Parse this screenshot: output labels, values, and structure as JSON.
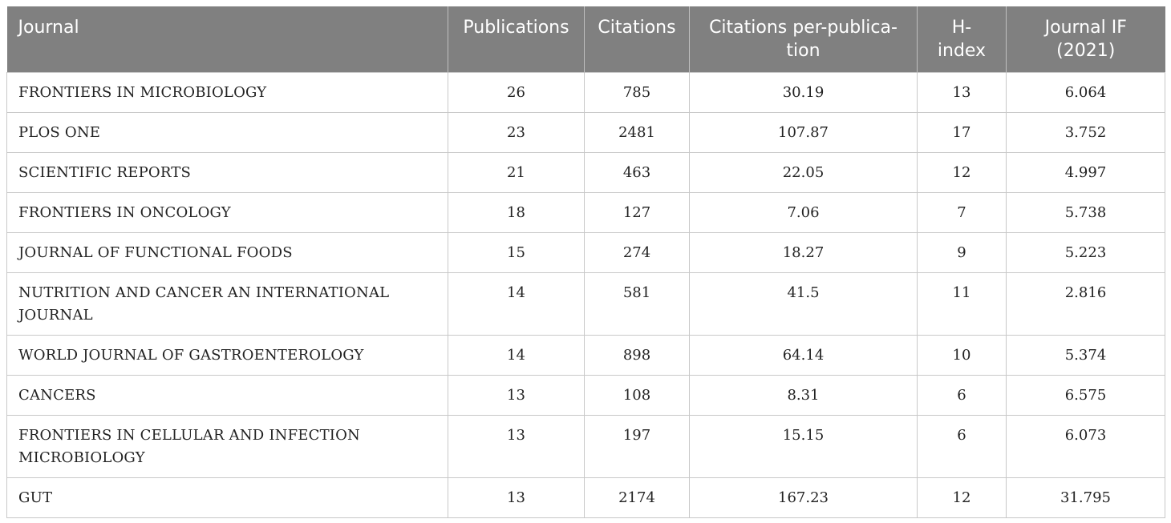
{
  "table": {
    "headers": [
      "Journal",
      "Publications",
      "Citations",
      "Citations per-publica-tion",
      "H-index",
      "Journal IF (2021)"
    ],
    "header_display": [
      [
        "Journal"
      ],
      [
        "Publications"
      ],
      [
        "Citations"
      ],
      [
        "Citations per-publica-",
        "tion"
      ],
      [
        "H-",
        "index"
      ],
      [
        "Journal IF",
        "(2021)"
      ]
    ],
    "rows": [
      [
        "FRONTIERS IN MICROBIOLOGY",
        "26",
        "785",
        "30.19",
        "13",
        "6.064"
      ],
      [
        "PLOS ONE",
        "23",
        "2481",
        "107.87",
        "17",
        "3.752"
      ],
      [
        "SCIENTIFIC REPORTS",
        "21",
        "463",
        "22.05",
        "12",
        "4.997"
      ],
      [
        "FRONTIERS IN ONCOLOGY",
        "18",
        "127",
        "7.06",
        "7",
        "5.738"
      ],
      [
        "JOURNAL OF FUNCTIONAL FOODS",
        "15",
        "274",
        "18.27",
        "9",
        "5.223"
      ],
      [
        "NUTRITION AND CANCER AN INTERNATIONAL JOURNAL",
        "14",
        "581",
        "41.5",
        "11",
        "2.816"
      ],
      [
        "WORLD JOURNAL OF GASTROENTEROLOGY",
        "14",
        "898",
        "64.14",
        "10",
        "5.374"
      ],
      [
        "CANCERS",
        "13",
        "108",
        "8.31",
        "6",
        "6.575"
      ],
      [
        "FRONTIERS IN CELLULAR AND INFECTION MICROBIOLOGY",
        "13",
        "197",
        "15.15",
        "6",
        "6.073"
      ],
      [
        "GUT",
        "13",
        "2174",
        "167.23",
        "12",
        "31.795"
      ]
    ]
  },
  "colors": {
    "header_bg": "#808080",
    "header_text": "#ffffff",
    "grid": "#c8c8c8"
  }
}
